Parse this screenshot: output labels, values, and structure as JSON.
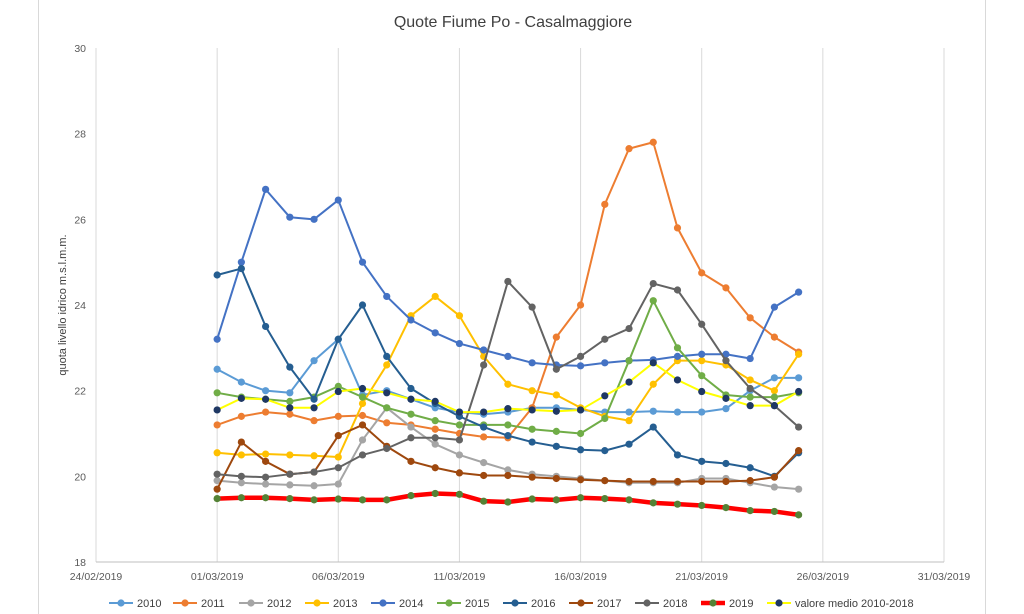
{
  "chart_data": {
    "type": "line",
    "title": "Quote Fiume Po - Casalmaggiore",
    "xlabel": "",
    "ylabel": "quota livello idrico m.s.l.m.m.",
    "ylim": [
      18,
      30
    ],
    "yticks": [
      "18",
      "20",
      "22",
      "24",
      "26",
      "28",
      "30"
    ],
    "x_start": "2019-02-24",
    "x_end": "2019-03-31",
    "xticks": [
      "24/02/2019",
      "01/03/2019",
      "06/03/2019",
      "11/03/2019",
      "16/03/2019",
      "21/03/2019",
      "26/03/2019",
      "31/03/2019"
    ],
    "x": [
      "2019-03-01",
      "2019-03-02",
      "2019-03-03",
      "2019-03-04",
      "2019-03-05",
      "2019-03-06",
      "2019-03-07",
      "2019-03-08",
      "2019-03-09",
      "2019-03-10",
      "2019-03-11",
      "2019-03-12",
      "2019-03-13",
      "2019-03-14",
      "2019-03-15",
      "2019-03-16",
      "2019-03-17",
      "2019-03-18",
      "2019-03-19",
      "2019-03-20",
      "2019-03-21",
      "2019-03-22",
      "2019-03-23",
      "2019-03-24",
      "2019-03-25"
    ],
    "grid": "vertical",
    "legend": "bottom",
    "series": [
      {
        "name": "2010",
        "color": "#5b9bd5",
        "values": [
          22.5,
          22.2,
          22.0,
          21.95,
          22.7,
          23.2,
          21.9,
          22.0,
          21.8,
          21.6,
          21.5,
          21.45,
          21.5,
          21.6,
          21.6,
          21.55,
          21.5,
          21.5,
          21.52,
          21.5,
          21.5,
          21.58,
          22.0,
          22.3,
          22.3
        ]
      },
      {
        "name": "2011",
        "color": "#ed7d31",
        "values": [
          21.2,
          21.4,
          21.5,
          21.45,
          21.3,
          21.4,
          21.42,
          21.25,
          21.2,
          21.1,
          21.0,
          20.92,
          20.9,
          21.6,
          23.25,
          24.0,
          26.35,
          27.65,
          27.8,
          25.8,
          24.75,
          24.4,
          23.7,
          23.25,
          22.9
        ]
      },
      {
        "name": "2012",
        "color": "#a5a5a5",
        "values": [
          19.9,
          19.85,
          19.82,
          19.8,
          19.78,
          19.82,
          20.85,
          21.6,
          21.15,
          20.75,
          20.5,
          20.32,
          20.15,
          20.05,
          20.0,
          19.95,
          19.9,
          19.85,
          19.85,
          19.85,
          19.95,
          19.95,
          19.85,
          19.75,
          19.7
        ]
      },
      {
        "name": "2013",
        "color": "#ffc000",
        "values": [
          20.55,
          20.5,
          20.52,
          20.5,
          20.48,
          20.45,
          21.7,
          22.6,
          23.75,
          24.2,
          23.75,
          22.8,
          22.15,
          22.0,
          21.9,
          21.6,
          21.4,
          21.3,
          22.15,
          22.7,
          22.7,
          22.6,
          22.25,
          22.0,
          22.85
        ]
      },
      {
        "name": "2014",
        "color": "#4472c4",
        "values": [
          23.2,
          25.0,
          26.7,
          26.05,
          26.0,
          26.45,
          25.0,
          24.2,
          23.65,
          23.35,
          23.1,
          22.95,
          22.8,
          22.65,
          22.6,
          22.58,
          22.65,
          22.7,
          22.72,
          22.8,
          22.85,
          22.85,
          22.75,
          23.95,
          24.3
        ]
      },
      {
        "name": "2015",
        "color": "#70ad47",
        "values": [
          21.95,
          21.85,
          21.8,
          21.75,
          21.85,
          22.1,
          21.85,
          21.6,
          21.45,
          21.3,
          21.2,
          21.2,
          21.2,
          21.1,
          21.05,
          21.0,
          21.35,
          22.7,
          24.1,
          23.0,
          22.35,
          21.9,
          21.85,
          21.85,
          21.95
        ]
      },
      {
        "name": "2016",
        "color": "#255e91",
        "values": [
          24.7,
          24.85,
          23.5,
          22.55,
          21.8,
          23.2,
          24.0,
          22.8,
          22.05,
          21.7,
          21.4,
          21.15,
          20.95,
          20.8,
          20.7,
          20.62,
          20.6,
          20.75,
          21.15,
          20.5,
          20.35,
          20.3,
          20.2,
          20.0,
          20.55
        ]
      },
      {
        "name": "2017",
        "color": "#9e480e",
        "values": [
          19.7,
          20.8,
          20.35,
          20.05,
          20.1,
          20.95,
          21.2,
          20.7,
          20.35,
          20.2,
          20.08,
          20.02,
          20.02,
          19.98,
          19.95,
          19.92,
          19.9,
          19.88,
          19.88,
          19.88,
          19.88,
          19.88,
          19.9,
          19.98,
          20.6
        ]
      },
      {
        "name": "2018",
        "color": "#636363",
        "values": [
          20.05,
          20.0,
          19.98,
          20.05,
          20.1,
          20.2,
          20.5,
          20.65,
          20.9,
          20.9,
          20.85,
          22.6,
          24.55,
          23.95,
          22.5,
          22.8,
          23.2,
          23.45,
          24.5,
          24.35,
          23.55,
          22.7,
          22.05,
          21.65,
          21.15
        ]
      },
      {
        "name": "2019",
        "color": "#ff0000",
        "marker": "#548235",
        "thick": true,
        "values": [
          19.48,
          19.5,
          19.5,
          19.48,
          19.45,
          19.47,
          19.45,
          19.45,
          19.55,
          19.6,
          19.58,
          19.42,
          19.4,
          19.47,
          19.45,
          19.5,
          19.48,
          19.45,
          19.38,
          19.35,
          19.32,
          19.27,
          19.2,
          19.18,
          19.1
        ]
      },
      {
        "name": "valore medio 2010-2018",
        "color": "#ffff00",
        "marker": "#1f3864",
        "values": [
          21.55,
          21.82,
          21.8,
          21.6,
          21.6,
          21.98,
          22.05,
          21.95,
          21.8,
          21.75,
          21.5,
          21.5,
          21.58,
          21.55,
          21.52,
          21.55,
          21.88,
          22.2,
          22.65,
          22.25,
          21.98,
          21.82,
          21.65,
          21.65,
          21.98
        ]
      }
    ]
  }
}
